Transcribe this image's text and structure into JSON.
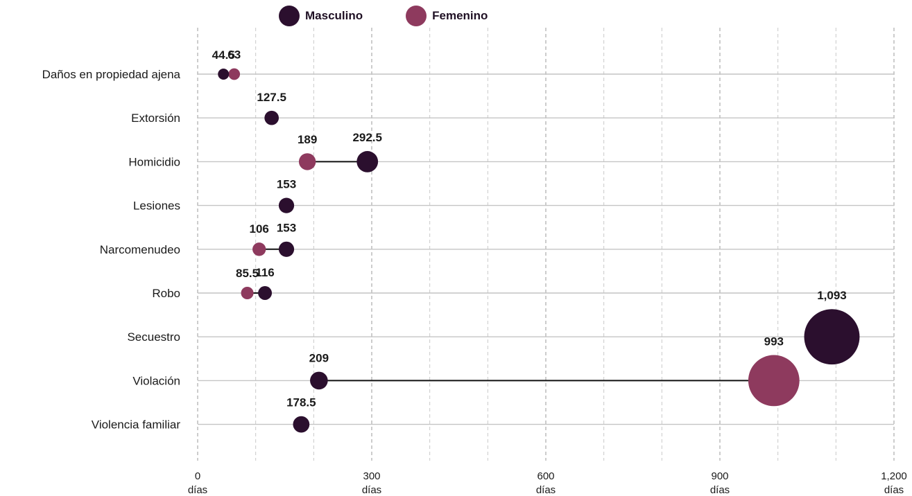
{
  "legend": {
    "masculino": {
      "label": "Masculino",
      "color": "#2b0f2e"
    },
    "femenino": {
      "label": "Femenino",
      "color": "#8e3a5e"
    }
  },
  "chart_data": {
    "type": "scatter",
    "subtype": "dumbbell",
    "title": "",
    "xlabel": "",
    "ylabel": "",
    "xlim": [
      0,
      1200
    ],
    "x_ticks": [
      {
        "value": 0,
        "label": "0",
        "unit": "días"
      },
      {
        "value": 300,
        "label": "300",
        "unit": "días"
      },
      {
        "value": 600,
        "label": "600",
        "unit": "días"
      },
      {
        "value": 900,
        "label": "900",
        "unit": "días"
      },
      {
        "value": 1200,
        "label": "1,200",
        "unit": "días"
      }
    ],
    "categories": [
      "Daños en propiedad ajena",
      "Extorsión",
      "Homicidio",
      "Lesiones",
      "Narcomenudeo",
      "Robo",
      "Secuestro",
      "Violación",
      "Violencia familiar"
    ],
    "series": [
      {
        "name": "Masculino",
        "color": "#2b0f2e",
        "values": [
          44.5,
          127.5,
          292.5,
          153,
          153,
          116,
          1093,
          209,
          178.5
        ],
        "labels": [
          "44.5",
          "127.5",
          "292.5",
          "153",
          "153",
          "116",
          "1,093",
          "209",
          "178.5"
        ]
      },
      {
        "name": "Femenino",
        "color": "#8e3a5e",
        "values": [
          63,
          null,
          189,
          null,
          106,
          85.5,
          null,
          993,
          null
        ],
        "labels": [
          "63",
          "",
          "189",
          "",
          "106",
          "85.5",
          "",
          "993",
          ""
        ]
      }
    ],
    "grid": true,
    "legend_position": "top"
  }
}
